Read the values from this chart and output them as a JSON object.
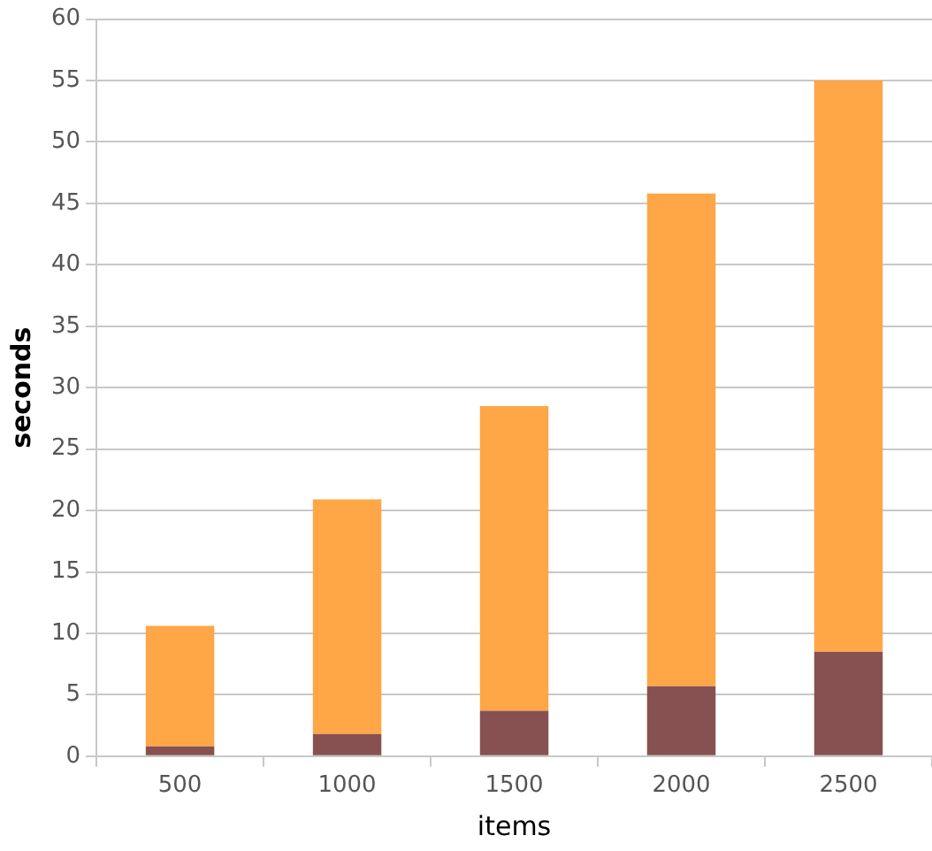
{
  "chart_data": {
    "type": "bar",
    "stacked": true,
    "xlabel": "items",
    "ylabel": "seconds",
    "categories": [
      "500",
      "1000",
      "1500",
      "2000",
      "2500"
    ],
    "series": [
      {
        "color": "#875152",
        "values": [
          0.8,
          1.8,
          3.7,
          5.7,
          8.5
        ]
      },
      {
        "color": "#ffa646",
        "values": [
          9.8,
          19.1,
          24.8,
          40.1,
          46.5
        ]
      }
    ],
    "ylim": [
      0,
      60
    ],
    "yticks": [
      0,
      5,
      10,
      15,
      20,
      25,
      30,
      35,
      40,
      45,
      50,
      55,
      60
    ],
    "grid": "y",
    "legend": false
  }
}
